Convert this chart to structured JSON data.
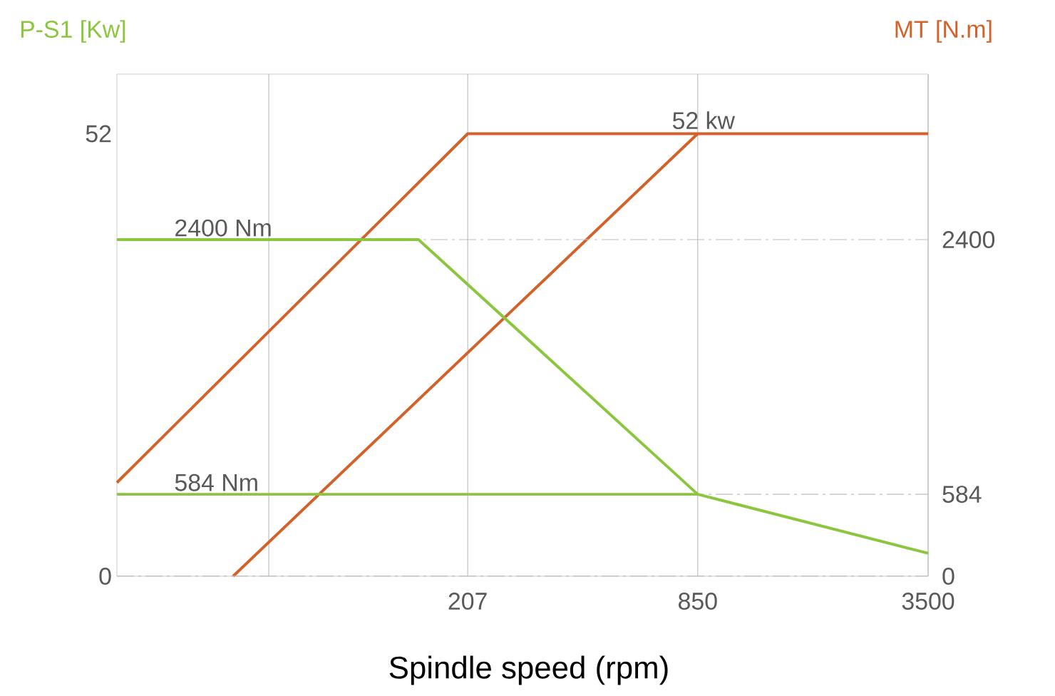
{
  "chart_data": {
    "type": "line",
    "xlabel": "Spindle speed (rpm)",
    "ylabel": "P-S1  [Kw]",
    "y2label": "MT  [N.m]",
    "log": "x",
    "xlim": [
      24,
      3500
    ],
    "xticks": [
      {
        "value": 61,
        "label": null
      },
      207,
      850,
      3500
    ],
    "ylim": [
      0,
      59
    ],
    "yticks": [
      0,
      52
    ],
    "y2lim": [
      0,
      3580
    ],
    "y2ticks": [
      0,
      584,
      2400
    ],
    "grid": true,
    "series": [
      {
        "color": "#d2622a",
        "x": [
          24,
          207,
          3500
        ],
        "values": [
          11,
          52,
          52
        ]
      },
      {
        "name": "52 kw",
        "color": "#d2622a",
        "x": [
          49,
          850
        ],
        "values": [
          0,
          52
        ]
      },
      {
        "name": "2400 Nm",
        "color": "#8cc63f",
        "axis": "y2",
        "x": [
          24,
          153,
          850,
          3500
        ],
        "values": [
          2400,
          2400,
          584,
          163
        ]
      },
      {
        "name": "584 Nm",
        "color": "#8cc63f",
        "axis": "y2",
        "x": [
          24,
          850
        ],
        "values": [
          584,
          584
        ]
      }
    ]
  }
}
